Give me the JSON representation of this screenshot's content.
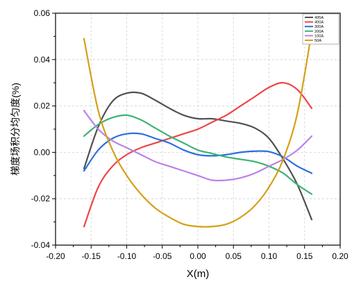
{
  "chart_data": {
    "type": "line",
    "title": "",
    "xlabel": "X(m)",
    "ylabel": "梯度场积分均匀度(%)",
    "xlim": [
      -0.2,
      0.2
    ],
    "ylim": [
      -0.04,
      0.06
    ],
    "xticks": [
      -0.2,
      -0.15,
      -0.1,
      -0.05,
      0.0,
      0.05,
      0.1,
      0.15,
      0.2
    ],
    "xtick_labels": [
      "-0.20",
      "-0.15",
      "-0.10",
      "-0.05",
      "0.00",
      "0.05",
      "0.10",
      "0.15",
      "0.20"
    ],
    "yticks": [
      -0.04,
      -0.02,
      0.0,
      0.02,
      0.04,
      0.06
    ],
    "ytick_labels": [
      "-0.04",
      "-0.02",
      "0.00",
      "0.02",
      "0.04",
      "0.06"
    ],
    "grid": true,
    "legend_position": "top-right",
    "x": [
      -0.16,
      -0.14,
      -0.12,
      -0.1,
      -0.08,
      -0.06,
      -0.04,
      -0.02,
      0.0,
      0.02,
      0.04,
      0.06,
      0.08,
      0.1,
      0.12,
      0.14,
      0.16
    ],
    "series": [
      {
        "name": "495A",
        "color": "#505050",
        "values": [
          -0.007,
          0.011,
          0.022,
          0.0255,
          0.0255,
          0.0225,
          0.019,
          0.016,
          0.0145,
          0.0145,
          0.0135,
          0.0125,
          0.0105,
          0.006,
          -0.003,
          -0.014,
          -0.029
        ]
      },
      {
        "name": "400A",
        "color": "#ee4444",
        "values": [
          -0.032,
          -0.015,
          -0.006,
          -0.001,
          0.002,
          0.004,
          0.006,
          0.008,
          0.01,
          0.013,
          0.016,
          0.02,
          0.024,
          0.028,
          0.03,
          0.027,
          0.019
        ]
      },
      {
        "name": "300A",
        "color": "#2a6fe0",
        "values": [
          -0.008,
          0.001,
          0.006,
          0.008,
          0.008,
          0.006,
          0.004,
          0.001,
          -0.001,
          -0.0015,
          -0.001,
          0.0,
          0.0005,
          0.0003,
          -0.002,
          -0.006,
          -0.009
        ]
      },
      {
        "name": "200A",
        "color": "#3cb371",
        "values": [
          0.007,
          0.012,
          0.015,
          0.016,
          0.014,
          0.0105,
          0.007,
          0.004,
          0.001,
          -0.0005,
          -0.002,
          -0.003,
          -0.004,
          -0.006,
          -0.009,
          -0.014,
          -0.018
        ]
      },
      {
        "name": "100A",
        "color": "#b983e8",
        "values": [
          0.018,
          0.01,
          0.005,
          0.002,
          -0.001,
          -0.004,
          -0.006,
          -0.008,
          -0.01,
          -0.012,
          -0.012,
          -0.011,
          -0.009,
          -0.006,
          -0.003,
          0.001,
          0.007
        ]
      },
      {
        "name": "50A",
        "color": "#d4a017",
        "values": [
          0.049,
          0.018,
          0.001,
          -0.01,
          -0.018,
          -0.024,
          -0.028,
          -0.031,
          -0.032,
          -0.032,
          -0.031,
          -0.028,
          -0.023,
          -0.015,
          -0.003,
          0.017,
          0.052
        ]
      }
    ]
  }
}
